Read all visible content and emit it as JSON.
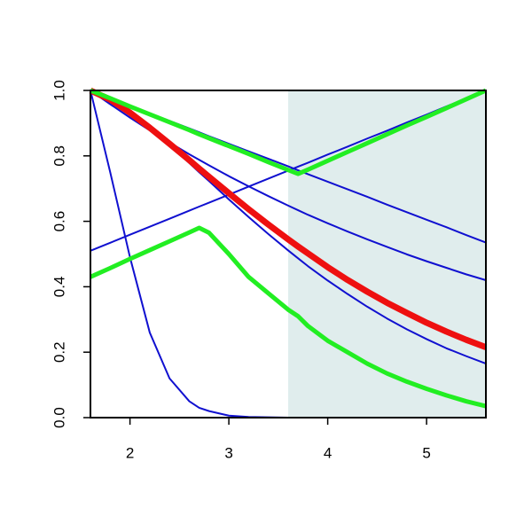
{
  "chart_data": {
    "type": "line",
    "xlim": [
      1.6,
      5.6
    ],
    "ylim": [
      0,
      1
    ],
    "xticks": [
      2,
      3,
      4,
      5
    ],
    "yticks": [
      {
        "value": 0,
        "label": "0.0"
      },
      {
        "value": 0.2,
        "label": "0.2"
      },
      {
        "value": 0.4,
        "label": "0.4"
      },
      {
        "value": 0.6,
        "label": "0.6"
      },
      {
        "value": 0.8,
        "label": "0.8"
      },
      {
        "value": 1,
        "label": "1.0"
      }
    ],
    "highlight": {
      "xmin": 3.6,
      "xmax": 5.6,
      "color": "#e0eded"
    },
    "x": [
      1.6,
      1.8,
      2.0,
      2.2,
      2.4,
      2.6,
      2.7,
      2.8,
      3.0,
      3.2,
      3.4,
      3.6,
      3.7,
      3.8,
      4.0,
      4.2,
      4.4,
      4.6,
      4.8,
      5.0,
      5.2,
      5.4,
      5.6
    ],
    "series": [
      {
        "color": "#1010d0",
        "lwd": 2,
        "values": [
          1.0,
          0.75,
          0.49,
          0.26,
          0.12,
          0.05,
          0.03,
          0.02,
          0.006,
          0.002,
          0.001,
          0,
          0,
          0,
          0,
          0,
          0,
          0,
          0,
          0,
          0,
          0,
          0
        ]
      },
      {
        "color": "#1010d0",
        "lwd": 2,
        "values": [
          1,
          0.977,
          0.953,
          0.93,
          0.907,
          0.884,
          0.872,
          0.86,
          0.837,
          0.814,
          0.791,
          0.768,
          0.756,
          0.744,
          0.721,
          0.698,
          0.675,
          0.651,
          0.628,
          0.605,
          0.582,
          0.558,
          0.535
        ]
      },
      {
        "color": "#1010d0",
        "lwd": 2,
        "values": [
          1,
          0.958,
          0.917,
          0.878,
          0.841,
          0.805,
          0.788,
          0.771,
          0.738,
          0.707,
          0.677,
          0.648,
          0.634,
          0.62,
          0.594,
          0.569,
          0.545,
          0.522,
          0.499,
          0.478,
          0.458,
          0.438,
          0.42
        ]
      },
      {
        "color": "#1010d0",
        "lwd": 2,
        "values": [
          1,
          0.974,
          0.934,
          0.886,
          0.833,
          0.778,
          0.75,
          0.723,
          0.667,
          0.613,
          0.561,
          0.511,
          0.487,
          0.463,
          0.419,
          0.378,
          0.339,
          0.303,
          0.27,
          0.24,
          0.212,
          0.188,
          0.165
        ]
      },
      {
        "color": "#1010d0",
        "lwd": 2,
        "values": [
          0.51,
          0.5345,
          0.559,
          0.5835,
          0.608,
          0.6325,
          0.645,
          0.657,
          0.6815,
          0.706,
          0.7305,
          0.755,
          0.767,
          0.779,
          0.804,
          0.828,
          0.853,
          0.877,
          0.902,
          0.926,
          0.951,
          0.975,
          1.0
        ]
      },
      {
        "color": "#ee1010",
        "lwd": 7,
        "values": [
          1,
          0.972,
          0.932,
          0.886,
          0.837,
          0.787,
          0.761,
          0.736,
          0.686,
          0.637,
          0.59,
          0.545,
          0.523,
          0.502,
          0.46,
          0.421,
          0.385,
          0.351,
          0.32,
          0.29,
          0.263,
          0.238,
          0.215
        ]
      },
      {
        "color": "#22ee22",
        "lwd": 5,
        "values": [
          1,
          0.976,
          0.951,
          0.927,
          0.903,
          0.879,
          0.866,
          0.854,
          0.83,
          0.806,
          0.781,
          0.757,
          0.745,
          0.758,
          0.785,
          0.812,
          0.839,
          0.866,
          0.893,
          0.919,
          0.946,
          0.973,
          1.0
        ]
      },
      {
        "color": "#22ee22",
        "lwd": 5,
        "values": [
          0.43,
          0.457,
          0.485,
          0.512,
          0.539,
          0.566,
          0.58,
          0.565,
          0.5,
          0.43,
          0.38,
          0.33,
          0.31,
          0.28,
          0.235,
          0.2,
          0.165,
          0.135,
          0.11,
          0.088,
          0.068,
          0.05,
          0.035
        ]
      }
    ]
  }
}
